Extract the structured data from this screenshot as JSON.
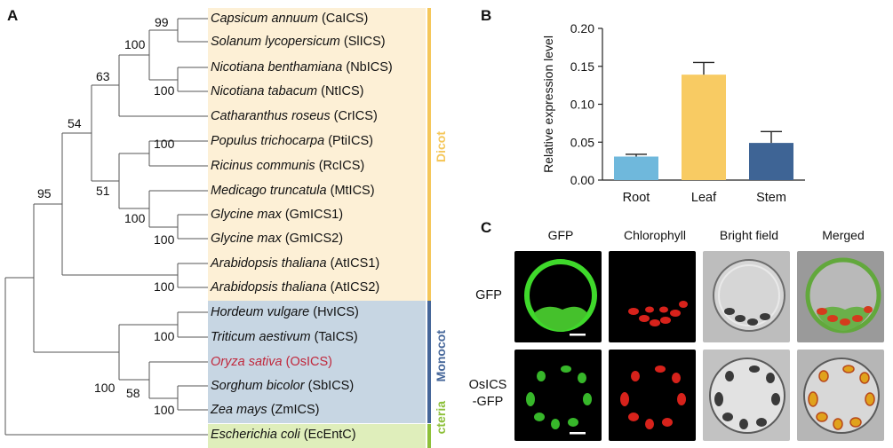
{
  "panels": {
    "a": "A",
    "b": "B",
    "c": "C"
  },
  "tree": {
    "taxa": [
      {
        "species": "Capsicum annuum",
        "gene": "(CaICS)",
        "color": "#1a1a1a"
      },
      {
        "species": "Solanum lycopersicum",
        "gene": "(SlICS)",
        "color": "#1a1a1a"
      },
      {
        "species": "Nicotiana benthamiana",
        "gene": "(NbICS)",
        "color": "#1a1a1a"
      },
      {
        "species": "Nicotiana tabacum",
        "gene": "(NtICS)",
        "color": "#1a1a1a"
      },
      {
        "species": "Catharanthus roseus",
        "gene": "(CrICS)",
        "color": "#1a1a1a"
      },
      {
        "species": "Populus trichocarpa",
        "gene": "(PtiICS)",
        "color": "#1a1a1a"
      },
      {
        "species": "Ricinus communis",
        "gene": "(RcICS)",
        "color": "#1a1a1a"
      },
      {
        "species": "Medicago truncatula",
        "gene": "(MtICS)",
        "color": "#1a1a1a"
      },
      {
        "species": "Glycine max",
        "gene": "(GmICS1)",
        "color": "#1a1a1a"
      },
      {
        "species": "Glycine max",
        "gene": "(GmICS2)",
        "color": "#1a1a1a"
      },
      {
        "species": "Arabidopsis thaliana",
        "gene": "(AtICS1)",
        "color": "#1a1a1a"
      },
      {
        "species": "Arabidopsis thaliana",
        "gene": "(AtICS2)",
        "color": "#1a1a1a"
      },
      {
        "species": "Hordeum vulgare",
        "gene": "(HvICS)",
        "color": "#1a1a1a"
      },
      {
        "species": "Triticum aestivum",
        "gene": "(TaICS)",
        "color": "#1a1a1a"
      },
      {
        "species": "Oryza sativa",
        "gene": "(OsICS)",
        "color": "#c0283c"
      },
      {
        "species": "Sorghum bicolor",
        "gene": "(SbICS)",
        "color": "#1a1a1a"
      },
      {
        "species": "Zea mays",
        "gene": "(ZmICS)",
        "color": "#1a1a1a"
      },
      {
        "species": "Escherichia coli",
        "gene": "(EcEntC)",
        "color": "#1a1a1a"
      }
    ],
    "bootstrap": [
      "99",
      "100",
      "63",
      "100",
      "54",
      "100",
      "51",
      "100",
      "100",
      "95",
      "100",
      "100",
      "100",
      "58",
      "100"
    ],
    "groups": [
      {
        "label": "Dicot",
        "color": "#f5c75a",
        "band": "#fdf0d6"
      },
      {
        "label": "Monocot",
        "color": "#46679a",
        "band": "#c7d6e3"
      },
      {
        "label": "cteria",
        "color": "#8dc03a",
        "band": "#dfeebb"
      }
    ]
  },
  "chart_data": {
    "type": "bar",
    "title": "",
    "ylabel": "Relative expression level",
    "xlabel": "",
    "categories": [
      "Root",
      "Leaf",
      "Stem"
    ],
    "values": [
      0.031,
      0.139,
      0.049
    ],
    "errors": [
      0.003,
      0.016,
      0.015
    ],
    "colors": [
      "#6fb8dc",
      "#f8cb63",
      "#3e6495"
    ],
    "ylim": [
      0,
      0.2
    ],
    "yticks": [
      "0.00",
      "0.05",
      "0.10",
      "0.15",
      "0.20"
    ]
  },
  "micrographs": {
    "columns": [
      "GFP",
      "Chlorophyll",
      "Bright field",
      "Merged"
    ],
    "rows": [
      {
        "l1": "GFP",
        "l2": ""
      },
      {
        "l1": "OsICS",
        "l2": "-GFP"
      }
    ]
  }
}
